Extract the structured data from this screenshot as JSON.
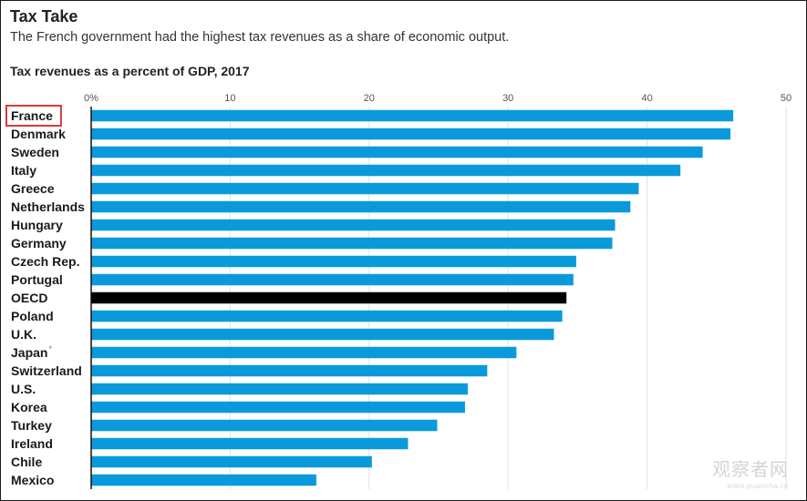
{
  "header": {
    "title": "Tax Take",
    "subtitle": "The French government had the highest tax revenues as a share of economic output."
  },
  "watermark": {
    "text": "观察者网",
    "sub": "www.guancha.cn"
  },
  "colors": {
    "bar": "#0A9ADB",
    "highlight_bar": "#000000",
    "grid": "#e2e2e2",
    "axis": "#111111",
    "highlight_box": "#d93a3a"
  },
  "chart_data": {
    "type": "bar",
    "orientation": "horizontal",
    "title": "Tax revenues as a percent of GDP, 2017",
    "xlabel": "",
    "ylabel": "",
    "xlim": [
      0,
      50
    ],
    "ticks": [
      0,
      10,
      20,
      30,
      40,
      50
    ],
    "tick_labels": [
      "0%",
      "10",
      "20",
      "30",
      "40",
      "50"
    ],
    "grid": true,
    "categories": [
      "France",
      "Denmark",
      "Sweden",
      "Italy",
      "Greece",
      "Netherlands",
      "Hungary",
      "Germany",
      "Czech Rep.",
      "Portugal",
      "OECD",
      "Poland",
      "U.K.",
      "Japan",
      "Switzerland",
      "U.S.",
      "Korea",
      "Turkey",
      "Ireland",
      "Chile",
      "Mexico"
    ],
    "values": [
      46.2,
      46.0,
      44.0,
      42.4,
      39.4,
      38.8,
      37.7,
      37.5,
      34.9,
      34.7,
      34.2,
      33.9,
      33.3,
      30.6,
      28.5,
      27.1,
      26.9,
      24.9,
      22.8,
      20.2,
      16.2
    ],
    "highlighted_category": "OECD",
    "boxed_category": "France",
    "notes": {
      "Japan": "*"
    }
  }
}
